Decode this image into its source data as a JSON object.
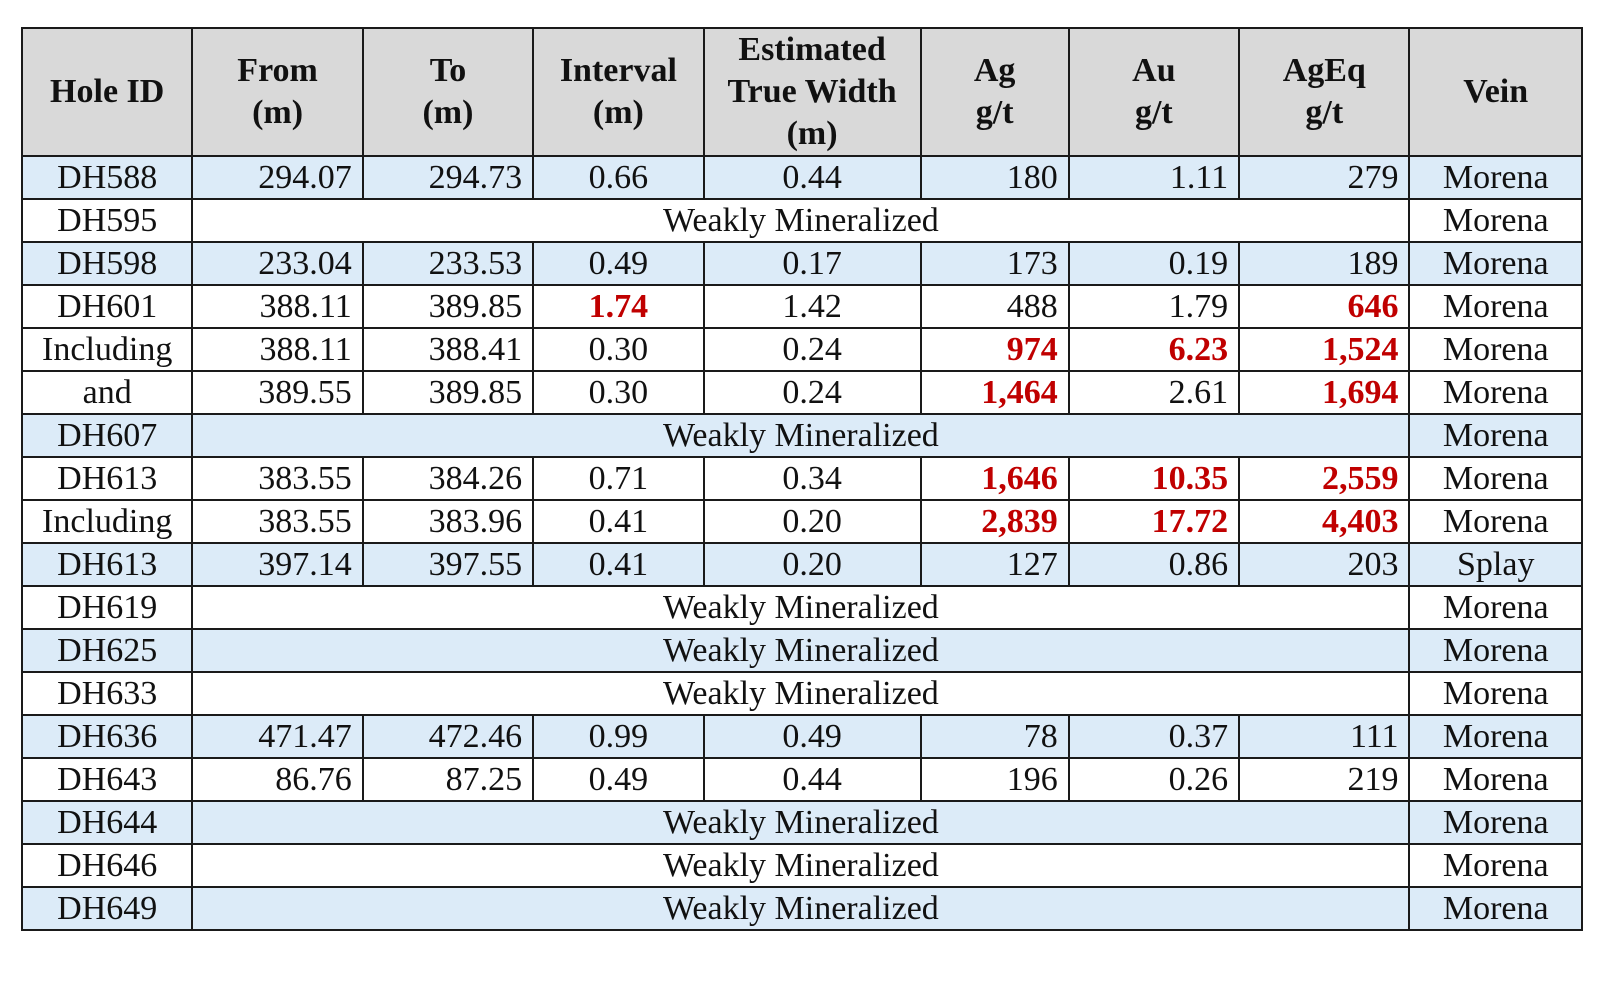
{
  "table": {
    "headers": [
      "Hole ID",
      "From\n(m)",
      "To\n(m)",
      "Interval\n(m)",
      "Estimated\nTrue Width\n(m)",
      "Ag\ng/t",
      "Au\ng/t",
      "AgEq\ng/t",
      "Vein"
    ],
    "highlight_color": "#c00000",
    "shade_color": "#dcebf8",
    "rows": [
      {
        "id": "DH588",
        "shaded": true,
        "from": "294.07",
        "to": "294.73",
        "interval": "0.66",
        "width": "0.44",
        "ag": "180",
        "au": "1.11",
        "ageq": "279",
        "vein": "Morena",
        "highlight": []
      },
      {
        "id": "DH595",
        "shaded": false,
        "note": "Weakly Mineralized",
        "vein": "Morena"
      },
      {
        "id": "DH598",
        "shaded": true,
        "from": "233.04",
        "to": "233.53",
        "interval": "0.49",
        "width": "0.17",
        "ag": "173",
        "au": "0.19",
        "ageq": "189",
        "vein": "Morena",
        "highlight": []
      },
      {
        "id": "DH601",
        "shaded": false,
        "from": "388.11",
        "to": "389.85",
        "interval": "1.74",
        "width": "1.42",
        "ag": "488",
        "au": "1.79",
        "ageq": "646",
        "vein": "Morena",
        "highlight": [
          "interval",
          "ageq"
        ]
      },
      {
        "id": "Including",
        "shaded": false,
        "from": "388.11",
        "to": "388.41",
        "interval": "0.30",
        "width": "0.24",
        "ag": "974",
        "au": "6.23",
        "ageq": "1,524",
        "vein": "Morena",
        "highlight": [
          "ag",
          "au",
          "ageq"
        ]
      },
      {
        "id": "and",
        "shaded": false,
        "from": "389.55",
        "to": "389.85",
        "interval": "0.30",
        "width": "0.24",
        "ag": "1,464",
        "au": "2.61",
        "ageq": "1,694",
        "vein": "Morena",
        "highlight": [
          "ag",
          "ageq"
        ]
      },
      {
        "id": "DH607",
        "shaded": true,
        "note": "Weakly Mineralized",
        "vein": "Morena"
      },
      {
        "id": "DH613",
        "shaded": false,
        "from": "383.55",
        "to": "384.26",
        "interval": "0.71",
        "width": "0.34",
        "ag": "1,646",
        "au": "10.35",
        "ageq": "2,559",
        "vein": "Morena",
        "highlight": [
          "ag",
          "au",
          "ageq"
        ]
      },
      {
        "id": "Including",
        "shaded": false,
        "from": "383.55",
        "to": "383.96",
        "interval": "0.41",
        "width": "0.20",
        "ag": "2,839",
        "au": "17.72",
        "ageq": "4,403",
        "vein": "Morena",
        "highlight": [
          "ag",
          "au",
          "ageq"
        ]
      },
      {
        "id": "DH613",
        "shaded": true,
        "from": "397.14",
        "to": "397.55",
        "interval": "0.41",
        "width": "0.20",
        "ag": "127",
        "au": "0.86",
        "ageq": "203",
        "vein": "Splay",
        "highlight": []
      },
      {
        "id": "DH619",
        "shaded": false,
        "note": "Weakly Mineralized",
        "vein": "Morena"
      },
      {
        "id": "DH625",
        "shaded": true,
        "note": "Weakly Mineralized",
        "vein": "Morena"
      },
      {
        "id": "DH633",
        "shaded": false,
        "note": "Weakly Mineralized",
        "vein": "Morena"
      },
      {
        "id": "DH636",
        "shaded": true,
        "from": "471.47",
        "to": "472.46",
        "interval": "0.99",
        "width": "0.49",
        "ag": "78",
        "au": "0.37",
        "ageq": "111",
        "vein": "Morena",
        "highlight": []
      },
      {
        "id": "DH643",
        "shaded": false,
        "from": "86.76",
        "to": "87.25",
        "interval": "0.49",
        "width": "0.44",
        "ag": "196",
        "au": "0.26",
        "ageq": "219",
        "vein": "Morena",
        "highlight": []
      },
      {
        "id": "DH644",
        "shaded": true,
        "note": "Weakly Mineralized",
        "vein": "Morena"
      },
      {
        "id": "DH646",
        "shaded": false,
        "note": "Weakly Mineralized",
        "vein": "Morena"
      },
      {
        "id": "DH649",
        "shaded": true,
        "note": "Weakly Mineralized",
        "vein": "Morena"
      }
    ]
  }
}
